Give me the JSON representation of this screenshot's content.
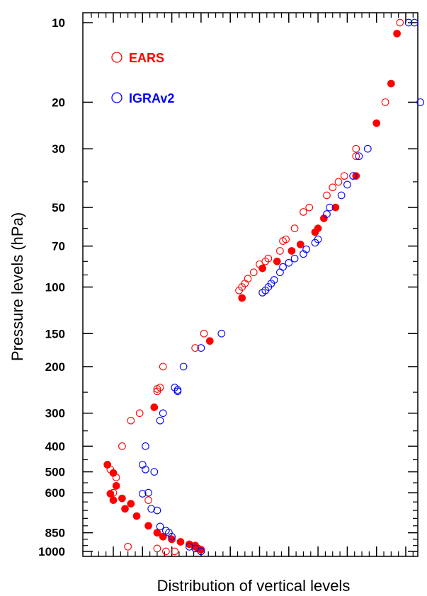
{
  "chart_data": {
    "type": "scatter",
    "ylabel": "Pressure levels (hPa)",
    "xlabel": "Distribution of vertical levels",
    "y_scale": "log-reversed",
    "ylim": [
      1000,
      10
    ],
    "y_ticks": [
      "10",
      "20",
      "30",
      "50",
      "70",
      "100",
      "150",
      "200",
      "300",
      "400",
      "500",
      "600",
      "850",
      "1000"
    ],
    "y_tick_values": [
      10,
      20,
      30,
      50,
      70,
      100,
      150,
      200,
      300,
      400,
      500,
      600,
      850,
      1000
    ],
    "legend": {
      "placement": "top-left"
    },
    "series": [
      {
        "name": "EARS",
        "color": "#ff0000",
        "marker": "open-circle",
        "points": [
          [
            9.8,
            10
          ],
          [
            9.3,
            20
          ],
          [
            8.3,
            30
          ],
          [
            8.3,
            32
          ],
          [
            7.9,
            38
          ],
          [
            7.7,
            40
          ],
          [
            7.5,
            42
          ],
          [
            7.3,
            45
          ],
          [
            6.7,
            50
          ],
          [
            6.5,
            52
          ],
          [
            6.2,
            60
          ],
          [
            5.9,
            66
          ],
          [
            5.8,
            67
          ],
          [
            5.7,
            73
          ],
          [
            5.3,
            78
          ],
          [
            5.2,
            80
          ],
          [
            5.0,
            82
          ],
          [
            4.8,
            88
          ],
          [
            4.6,
            93
          ],
          [
            4.5,
            97
          ],
          [
            4.4,
            100
          ],
          [
            4.3,
            103
          ],
          [
            3.1,
            150
          ],
          [
            2.8,
            170
          ],
          [
            1.7,
            200
          ],
          [
            1.6,
            240
          ],
          [
            1.5,
            243
          ],
          [
            1.5,
            248
          ],
          [
            0.9,
            300
          ],
          [
            0.6,
            320
          ],
          [
            0.3,
            400
          ],
          [
            -0.2,
            470
          ],
          [
            -0.1,
            490
          ],
          [
            0.1,
            525
          ],
          [
            0.0,
            600
          ],
          [
            0.5,
            960
          ],
          [
            1.5,
            975
          ],
          [
            1.8,
            1000
          ],
          [
            2.1,
            1000
          ],
          [
            1.2,
            640
          ]
        ]
      },
      {
        "name": "EARS (filled)",
        "color": "#ff0000",
        "marker": "filled-circle",
        "points": [
          [
            9.7,
            11
          ],
          [
            9.5,
            17
          ],
          [
            9.0,
            24
          ],
          [
            8.3,
            38
          ],
          [
            7.6,
            50
          ],
          [
            7.2,
            55
          ],
          [
            7.0,
            60
          ],
          [
            6.9,
            62
          ],
          [
            6.4,
            69
          ],
          [
            6.1,
            73
          ],
          [
            5.6,
            80
          ],
          [
            5.1,
            85
          ],
          [
            4.4,
            110
          ],
          [
            3.3,
            160
          ],
          [
            1.4,
            285
          ],
          [
            -0.2,
            470
          ],
          [
            0.0,
            505
          ],
          [
            0.1,
            565
          ],
          [
            -0.1,
            605
          ],
          [
            0.3,
            630
          ],
          [
            0.0,
            640
          ],
          [
            0.6,
            660
          ],
          [
            0.4,
            690
          ],
          [
            0.8,
            735
          ],
          [
            1.2,
            800
          ],
          [
            1.5,
            850
          ],
          [
            1.7,
            880
          ],
          [
            2.0,
            900
          ],
          [
            2.3,
            920
          ],
          [
            2.6,
            940
          ],
          [
            2.8,
            950
          ],
          [
            2.8,
            960
          ],
          [
            2.9,
            975
          ],
          [
            3.0,
            985
          ]
        ]
      },
      {
        "name": "IGRAv2",
        "color": "#0000ff",
        "marker": "open-circle",
        "points": [
          [
            10.3,
            10
          ],
          [
            10.1,
            10
          ],
          [
            10.5,
            20
          ],
          [
            8.7,
            30
          ],
          [
            8.4,
            32
          ],
          [
            8.2,
            38
          ],
          [
            8.0,
            41
          ],
          [
            7.8,
            45
          ],
          [
            7.4,
            50
          ],
          [
            7.3,
            53
          ],
          [
            7.0,
            66
          ],
          [
            6.9,
            68
          ],
          [
            6.6,
            72
          ],
          [
            6.5,
            75
          ],
          [
            6.2,
            78
          ],
          [
            6.0,
            81
          ],
          [
            5.8,
            84
          ],
          [
            5.7,
            88
          ],
          [
            5.5,
            94
          ],
          [
            5.4,
            97
          ],
          [
            5.3,
            100
          ],
          [
            5.2,
            103
          ],
          [
            5.1,
            105
          ],
          [
            3.7,
            150
          ],
          [
            3.0,
            170
          ],
          [
            2.4,
            200
          ],
          [
            2.1,
            240
          ],
          [
            2.2,
            245
          ],
          [
            2.2,
            248
          ],
          [
            1.7,
            300
          ],
          [
            1.6,
            320
          ],
          [
            1.1,
            400
          ],
          [
            1.0,
            470
          ],
          [
            1.1,
            490
          ],
          [
            1.4,
            500
          ],
          [
            1.2,
            600
          ],
          [
            1.0,
            605
          ],
          [
            1.3,
            690
          ],
          [
            1.5,
            700
          ],
          [
            1.6,
            805
          ],
          [
            1.8,
            835
          ],
          [
            1.9,
            850
          ],
          [
            2.0,
            880
          ],
          [
            2.6,
            960
          ],
          [
            2.8,
            975
          ],
          [
            3.0,
            1000
          ]
        ]
      }
    ],
    "legend_entries": [
      "EARS",
      "IGRAv2"
    ]
  },
  "colors": {
    "ears": "#ff0000",
    "igra": "#0000ff",
    "axis": "#000000",
    "background": "#ffffff"
  }
}
